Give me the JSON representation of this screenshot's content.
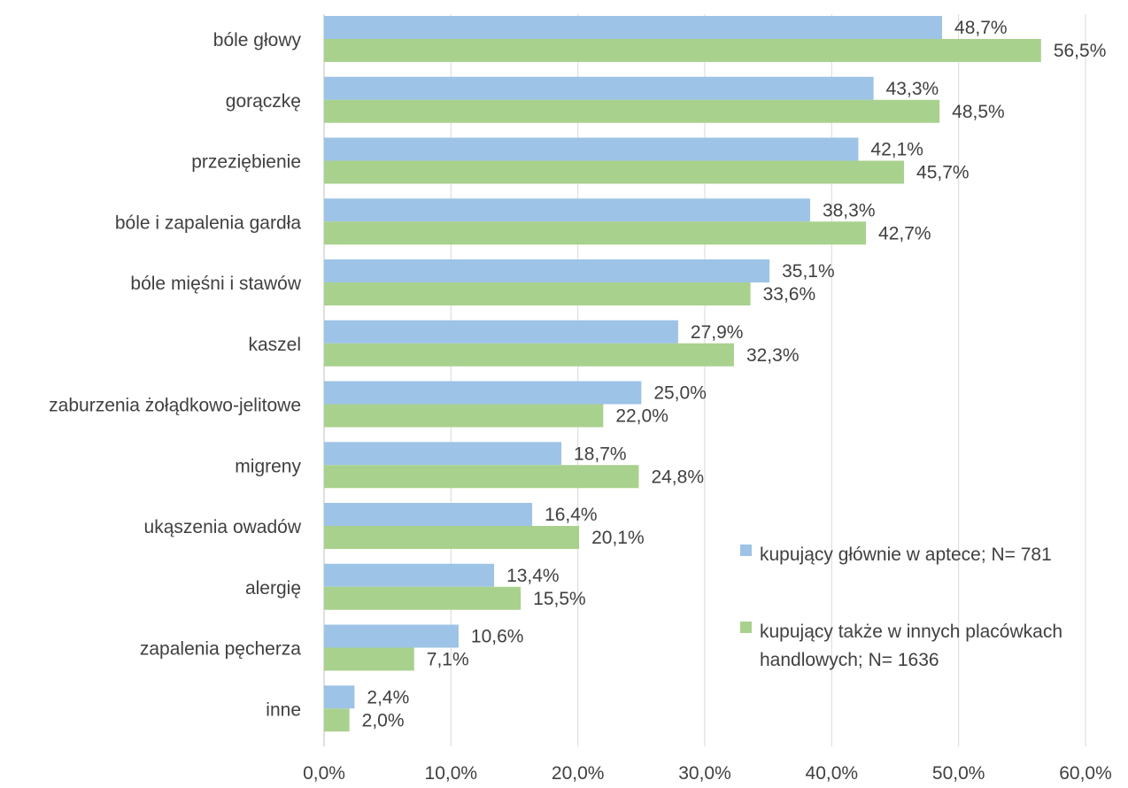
{
  "chart_data": {
    "type": "bar",
    "orientation": "horizontal",
    "title": "",
    "xlabel": "",
    "ylabel": "",
    "xlim": [
      0,
      60
    ],
    "x_ticks": [
      0,
      10,
      20,
      30,
      40,
      50,
      60
    ],
    "x_tick_labels": [
      "0,0%",
      "10,0%",
      "20,0%",
      "30,0%",
      "40,0%",
      "50,0%",
      "60,0%"
    ],
    "grid": true,
    "legend_position": "right",
    "categories": [
      "bóle głowy",
      "gorączkę",
      "przeziębienie",
      "bóle i zapalenia gardła",
      "bóle mięśni i stawów",
      "kaszel",
      "zaburzenia żołądkowo-jelitowe",
      "migreny",
      "ukąszenia owadów",
      "alergię",
      "zapalenia pęcherza",
      "inne"
    ],
    "series": [
      {
        "name": "kupujący głównie w aptece; N= 781",
        "legend_lines": [
          "kupujący głównie w aptece; N= 781"
        ],
        "color": "#9dc3e6",
        "values": [
          48.7,
          43.3,
          42.1,
          38.3,
          35.1,
          27.9,
          25.0,
          18.7,
          16.4,
          13.4,
          10.6,
          2.4
        ],
        "labels": [
          "48,7%",
          "43,3%",
          "42,1%",
          "38,3%",
          "35,1%",
          "27,9%",
          "25,0%",
          "18,7%",
          "16,4%",
          "13,4%",
          "10,6%",
          "2,4%"
        ]
      },
      {
        "name": "kupujący także w innych placówkach handlowych; N= 1636",
        "legend_lines": [
          "kupujący także w innych placówkach",
          "handlowych; N= 1636"
        ],
        "color": "#a9d18e",
        "values": [
          56.5,
          48.5,
          45.7,
          42.7,
          33.6,
          32.3,
          22.0,
          24.8,
          20.1,
          15.5,
          7.1,
          2.0
        ],
        "labels": [
          "56,5%",
          "48,5%",
          "45,7%",
          "42,7%",
          "33,6%",
          "32,3%",
          "22,0%",
          "24,8%",
          "20,1%",
          "15,5%",
          "7,1%",
          "2,0%"
        ]
      }
    ],
    "colors": {
      "text": "#404040",
      "grid": "#d9d9d9",
      "axis": "#bfbfbf"
    }
  }
}
